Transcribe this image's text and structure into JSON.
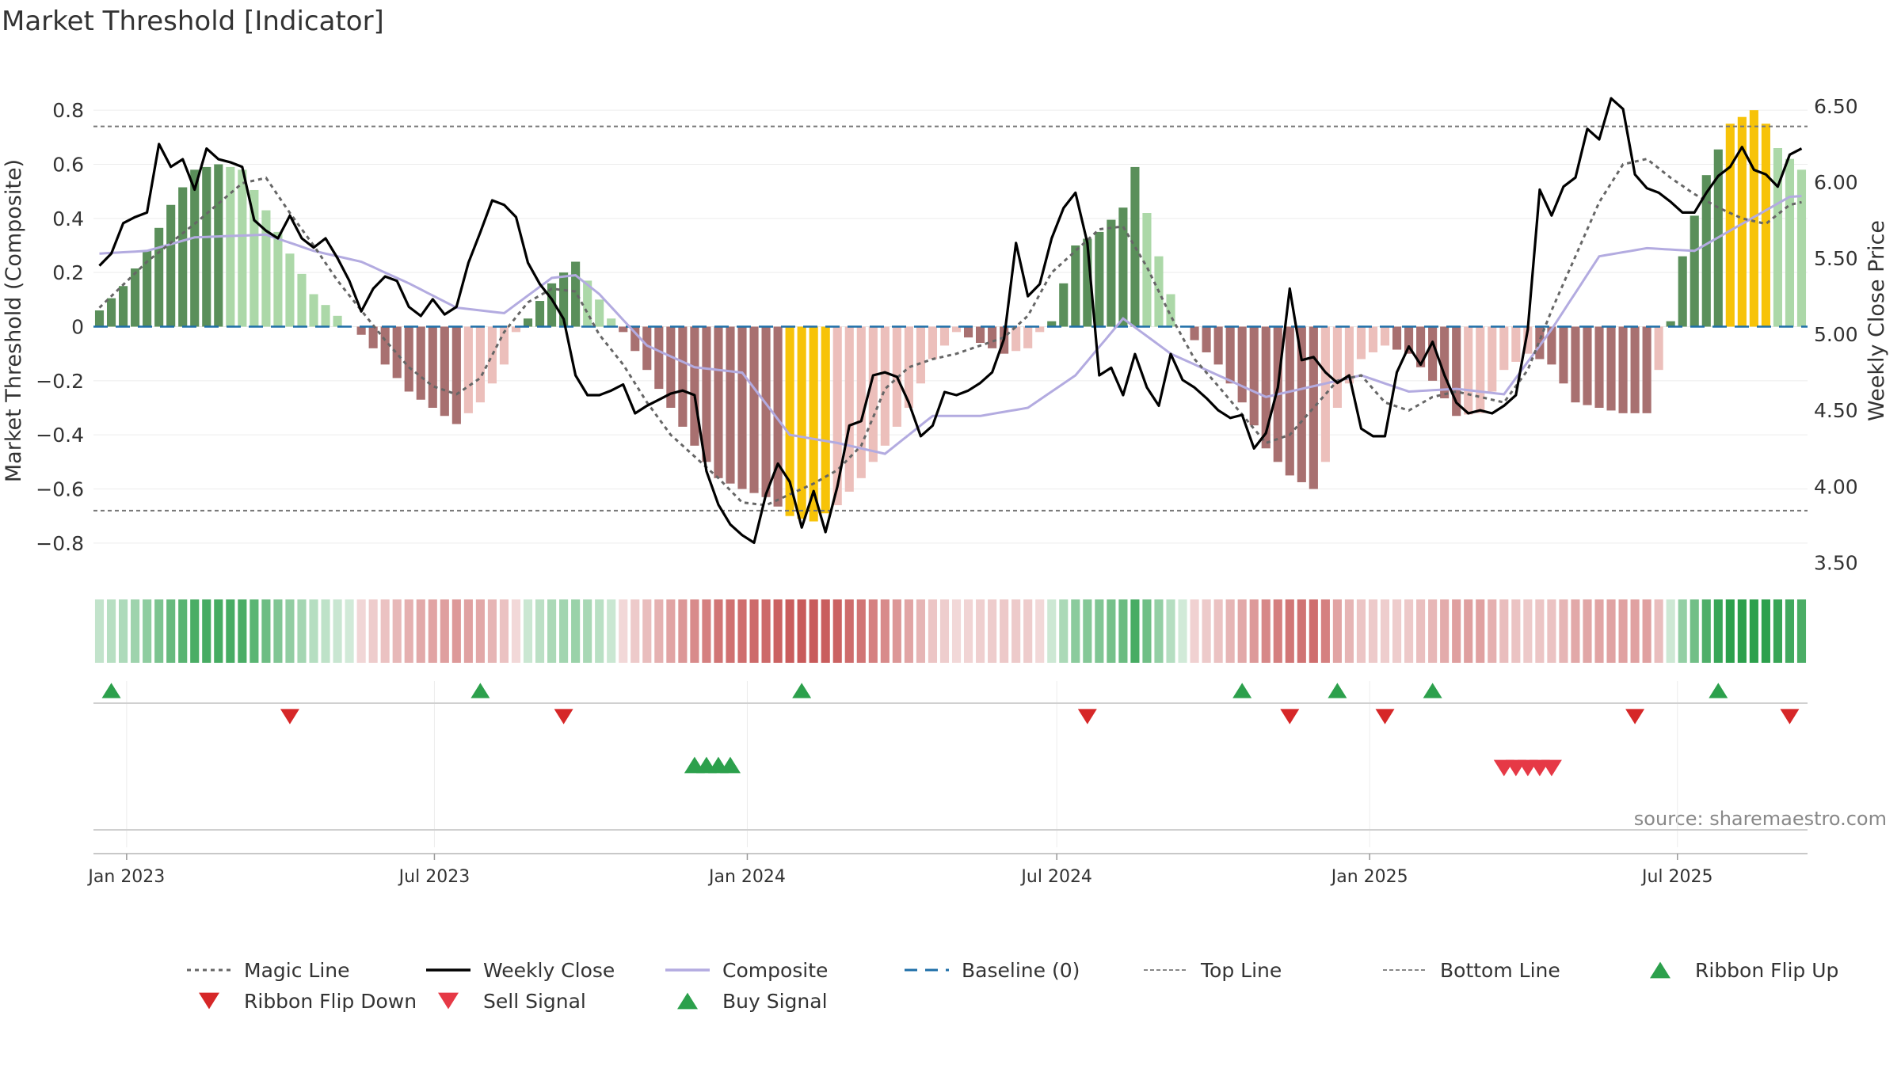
{
  "chart_data": {
    "type": "bar",
    "title": "Market Threshold [Indicator]",
    "ylabel": "Market Threshold (Composite)",
    "y2label": "Weekly Close Price",
    "ylim": [
      -0.9,
      0.9
    ],
    "y2lim": [
      3.45,
      6.65
    ],
    "yticks": [
      0.8,
      0.6,
      0.4,
      0.2,
      0,
      -0.2,
      -0.4,
      -0.6,
      -0.8
    ],
    "ytick_labels": [
      "0.8",
      "0.6",
      "0.4",
      "0.2",
      "0",
      "−0.2",
      "−0.4",
      "−0.6",
      "−0.8"
    ],
    "y2ticks": [
      6.5,
      6.0,
      5.5,
      5.0,
      4.5,
      4.0,
      3.5
    ],
    "y2tick_labels": [
      "6.50",
      "6.00",
      "5.50",
      "5.00",
      "4.50",
      "4.00",
      "3.50"
    ],
    "top_line": 0.74,
    "bottom_line": -0.68,
    "start_date": "2022-12-16",
    "weeks": 144,
    "xticks": [
      "2023-01-01",
      "2023-07-01",
      "2024-01-01",
      "2024-07-01",
      "2025-01-01",
      "2025-07-01"
    ],
    "xtick_labels": [
      "Jan 2023",
      "Jul 2023",
      "Jan 2024",
      "Jul 2024",
      "Jan 2025",
      "Jul 2025"
    ],
    "composite_keypoints": [
      [
        0,
        0.06
      ],
      [
        2,
        0.15
      ],
      [
        4,
        0.28
      ],
      [
        6,
        0.45
      ],
      [
        8,
        0.58
      ],
      [
        10,
        0.6
      ],
      [
        12,
        0.58
      ],
      [
        14,
        0.43
      ],
      [
        16,
        0.27
      ],
      [
        18,
        0.12
      ],
      [
        20,
        0.04
      ],
      [
        21,
        0.0
      ],
      [
        22,
        -0.03
      ],
      [
        23,
        -0.08
      ],
      [
        24,
        -0.14
      ],
      [
        26,
        -0.24
      ],
      [
        28,
        -0.3
      ],
      [
        30,
        -0.36
      ],
      [
        32,
        -0.28
      ],
      [
        34,
        -0.14
      ],
      [
        35,
        -0.02
      ],
      [
        36,
        0.03
      ],
      [
        38,
        0.16
      ],
      [
        40,
        0.24
      ],
      [
        42,
        0.1
      ],
      [
        43,
        0.03
      ],
      [
        44,
        -0.02
      ],
      [
        46,
        -0.16
      ],
      [
        48,
        -0.3
      ],
      [
        50,
        -0.44
      ],
      [
        52,
        -0.56
      ],
      [
        54,
        -0.6
      ],
      [
        56,
        -0.63
      ],
      [
        58,
        -0.7
      ],
      [
        60,
        -0.72
      ],
      [
        62,
        -0.66
      ],
      [
        64,
        -0.56
      ],
      [
        66,
        -0.44
      ],
      [
        68,
        -0.3
      ],
      [
        70,
        -0.12
      ],
      [
        72,
        -0.02
      ],
      [
        74,
        -0.06
      ],
      [
        76,
        -0.1
      ],
      [
        78,
        -0.08
      ],
      [
        79,
        -0.02
      ],
      [
        80,
        0.02
      ],
      [
        82,
        0.3
      ],
      [
        84,
        0.35
      ],
      [
        86,
        0.44
      ],
      [
        87,
        0.59
      ],
      [
        88,
        0.42
      ],
      [
        89,
        0.26
      ],
      [
        90,
        0.12
      ],
      [
        91,
        0.0
      ],
      [
        92,
        -0.05
      ],
      [
        94,
        -0.14
      ],
      [
        96,
        -0.28
      ],
      [
        98,
        -0.45
      ],
      [
        100,
        -0.55
      ],
      [
        102,
        -0.6
      ],
      [
        103,
        -0.5
      ],
      [
        104,
        -0.3
      ],
      [
        106,
        -0.12
      ],
      [
        108,
        -0.07
      ],
      [
        110,
        -0.1
      ],
      [
        112,
        -0.2
      ],
      [
        114,
        -0.33
      ],
      [
        116,
        -0.32
      ],
      [
        118,
        -0.16
      ],
      [
        120,
        -0.1
      ],
      [
        122,
        -0.14
      ],
      [
        124,
        -0.28
      ],
      [
        126,
        -0.3
      ],
      [
        128,
        -0.32
      ],
      [
        130,
        -0.32
      ],
      [
        131,
        -0.16
      ],
      [
        132,
        0.02
      ],
      [
        133,
        0.26
      ],
      [
        135,
        0.56
      ],
      [
        137,
        0.75
      ],
      [
        139,
        0.8
      ],
      [
        140,
        0.75
      ],
      [
        141,
        0.66
      ],
      [
        143,
        0.58
      ]
    ],
    "close_keypoints": [
      [
        0,
        5.45
      ],
      [
        1,
        5.53
      ],
      [
        2,
        5.73
      ],
      [
        3,
        5.77
      ],
      [
        4,
        5.8
      ],
      [
        5,
        6.25
      ],
      [
        6,
        6.1
      ],
      [
        7,
        6.15
      ],
      [
        8,
        5.95
      ],
      [
        9,
        6.22
      ],
      [
        10,
        6.15
      ],
      [
        11,
        6.13
      ],
      [
        12,
        6.1
      ],
      [
        13,
        5.75
      ],
      [
        14,
        5.68
      ],
      [
        15,
        5.63
      ],
      [
        16,
        5.78
      ],
      [
        17,
        5.63
      ],
      [
        18,
        5.57
      ],
      [
        19,
        5.63
      ],
      [
        20,
        5.5
      ],
      [
        21,
        5.35
      ],
      [
        22,
        5.15
      ],
      [
        23,
        5.3
      ],
      [
        24,
        5.38
      ],
      [
        25,
        5.35
      ],
      [
        26,
        5.18
      ],
      [
        27,
        5.12
      ],
      [
        28,
        5.23
      ],
      [
        29,
        5.13
      ],
      [
        30,
        5.18
      ],
      [
        31,
        5.47
      ],
      [
        32,
        5.67
      ],
      [
        33,
        5.88
      ],
      [
        34,
        5.85
      ],
      [
        35,
        5.77
      ],
      [
        36,
        5.47
      ],
      [
        37,
        5.33
      ],
      [
        38,
        5.23
      ],
      [
        39,
        5.1
      ],
      [
        40,
        4.73
      ],
      [
        41,
        4.6
      ],
      [
        42,
        4.6
      ],
      [
        43,
        4.63
      ],
      [
        44,
        4.67
      ],
      [
        45,
        4.48
      ],
      [
        46,
        4.53
      ],
      [
        47,
        4.57
      ],
      [
        48,
        4.61
      ],
      [
        49,
        4.63
      ],
      [
        50,
        4.6
      ],
      [
        51,
        4.1
      ],
      [
        52,
        3.88
      ],
      [
        53,
        3.75
      ],
      [
        54,
        3.68
      ],
      [
        55,
        3.63
      ],
      [
        56,
        3.95
      ],
      [
        57,
        4.15
      ],
      [
        58,
        4.03
      ],
      [
        59,
        3.73
      ],
      [
        60,
        3.97
      ],
      [
        61,
        3.7
      ],
      [
        62,
        4.0
      ],
      [
        63,
        4.4
      ],
      [
        64,
        4.43
      ],
      [
        65,
        4.73
      ],
      [
        66,
        4.75
      ],
      [
        67,
        4.72
      ],
      [
        68,
        4.55
      ],
      [
        69,
        4.33
      ],
      [
        70,
        4.4
      ],
      [
        71,
        4.62
      ],
      [
        72,
        4.6
      ],
      [
        73,
        4.63
      ],
      [
        74,
        4.68
      ],
      [
        75,
        4.75
      ],
      [
        76,
        4.97
      ],
      [
        77,
        5.6
      ],
      [
        78,
        5.25
      ],
      [
        79,
        5.33
      ],
      [
        80,
        5.63
      ],
      [
        81,
        5.83
      ],
      [
        82,
        5.93
      ],
      [
        83,
        5.6
      ],
      [
        84,
        4.73
      ],
      [
        85,
        4.78
      ],
      [
        86,
        4.6
      ],
      [
        87,
        4.87
      ],
      [
        88,
        4.65
      ],
      [
        89,
        4.53
      ],
      [
        90,
        4.87
      ],
      [
        91,
        4.7
      ],
      [
        92,
        4.65
      ],
      [
        93,
        4.58
      ],
      [
        94,
        4.5
      ],
      [
        95,
        4.45
      ],
      [
        96,
        4.47
      ],
      [
        97,
        4.25
      ],
      [
        98,
        4.35
      ],
      [
        99,
        4.65
      ],
      [
        100,
        5.3
      ],
      [
        101,
        4.83
      ],
      [
        102,
        4.85
      ],
      [
        103,
        4.75
      ],
      [
        104,
        4.68
      ],
      [
        105,
        4.73
      ],
      [
        106,
        4.38
      ],
      [
        107,
        4.33
      ],
      [
        108,
        4.33
      ],
      [
        109,
        4.75
      ],
      [
        110,
        4.92
      ],
      [
        111,
        4.8
      ],
      [
        112,
        4.95
      ],
      [
        113,
        4.73
      ],
      [
        114,
        4.55
      ],
      [
        115,
        4.48
      ],
      [
        116,
        4.5
      ],
      [
        117,
        4.48
      ],
      [
        118,
        4.53
      ],
      [
        119,
        4.6
      ],
      [
        120,
        5.03
      ],
      [
        121,
        5.95
      ],
      [
        122,
        5.78
      ],
      [
        123,
        5.97
      ],
      [
        124,
        6.03
      ],
      [
        125,
        6.35
      ],
      [
        126,
        6.28
      ],
      [
        127,
        6.55
      ],
      [
        128,
        6.48
      ],
      [
        129,
        6.05
      ],
      [
        130,
        5.96
      ],
      [
        131,
        5.93
      ],
      [
        132,
        5.87
      ],
      [
        133,
        5.8
      ],
      [
        134,
        5.8
      ],
      [
        135,
        5.93
      ],
      [
        136,
        6.04
      ],
      [
        137,
        6.1
      ],
      [
        138,
        6.23
      ],
      [
        139,
        6.08
      ],
      [
        140,
        6.05
      ],
      [
        141,
        5.97
      ],
      [
        142,
        6.18
      ],
      [
        143,
        6.22
      ]
    ],
    "composite_line_keypoints": [
      [
        0,
        0.27
      ],
      [
        4,
        0.28
      ],
      [
        8,
        0.33
      ],
      [
        14,
        0.34
      ],
      [
        18,
        0.28
      ],
      [
        22,
        0.24
      ],
      [
        26,
        0.16
      ],
      [
        30,
        0.07
      ],
      [
        34,
        0.05
      ],
      [
        38,
        0.18
      ],
      [
        40,
        0.19
      ],
      [
        42,
        0.12
      ],
      [
        46,
        -0.07
      ],
      [
        50,
        -0.15
      ],
      [
        54,
        -0.17
      ],
      [
        58,
        -0.4
      ],
      [
        62,
        -0.43
      ],
      [
        66,
        -0.47
      ],
      [
        70,
        -0.33
      ],
      [
        74,
        -0.33
      ],
      [
        78,
        -0.3
      ],
      [
        82,
        -0.18
      ],
      [
        86,
        0.03
      ],
      [
        90,
        -0.1
      ],
      [
        94,
        -0.18
      ],
      [
        98,
        -0.26
      ],
      [
        102,
        -0.22
      ],
      [
        106,
        -0.18
      ],
      [
        110,
        -0.24
      ],
      [
        114,
        -0.23
      ],
      [
        118,
        -0.25
      ],
      [
        122,
        -0.01
      ],
      [
        126,
        0.26
      ],
      [
        130,
        0.29
      ],
      [
        134,
        0.28
      ],
      [
        138,
        0.38
      ],
      [
        142,
        0.48
      ],
      [
        146,
        0.49
      ]
    ],
    "magic_line_keypoints": [
      [
        0,
        0.07
      ],
      [
        4,
        0.24
      ],
      [
        8,
        0.38
      ],
      [
        12,
        0.53
      ],
      [
        14,
        0.55
      ],
      [
        16,
        0.42
      ],
      [
        18,
        0.3
      ],
      [
        20,
        0.17
      ],
      [
        24,
        -0.05
      ],
      [
        26,
        -0.15
      ],
      [
        28,
        -0.22
      ],
      [
        30,
        -0.25
      ],
      [
        32,
        -0.19
      ],
      [
        34,
        -0.02
      ],
      [
        36,
        0.09
      ],
      [
        38,
        0.14
      ],
      [
        40,
        0.13
      ],
      [
        42,
        -0.03
      ],
      [
        44,
        -0.14
      ],
      [
        46,
        -0.28
      ],
      [
        48,
        -0.4
      ],
      [
        50,
        -0.48
      ],
      [
        52,
        -0.56
      ],
      [
        54,
        -0.65
      ],
      [
        56,
        -0.66
      ],
      [
        58,
        -0.62
      ],
      [
        60,
        -0.58
      ],
      [
        62,
        -0.53
      ],
      [
        64,
        -0.44
      ],
      [
        66,
        -0.23
      ],
      [
        68,
        -0.15
      ],
      [
        70,
        -0.12
      ],
      [
        72,
        -0.1
      ],
      [
        76,
        -0.04
      ],
      [
        78,
        0.04
      ],
      [
        80,
        0.2
      ],
      [
        84,
        0.36
      ],
      [
        86,
        0.37
      ],
      [
        88,
        0.22
      ],
      [
        90,
        0.04
      ],
      [
        92,
        -0.12
      ],
      [
        94,
        -0.22
      ],
      [
        98,
        -0.43
      ],
      [
        100,
        -0.4
      ],
      [
        102,
        -0.3
      ],
      [
        104,
        -0.2
      ],
      [
        106,
        -0.18
      ],
      [
        108,
        -0.28
      ],
      [
        110,
        -0.31
      ],
      [
        112,
        -0.26
      ],
      [
        114,
        -0.24
      ],
      [
        116,
        -0.26
      ],
      [
        118,
        -0.28
      ],
      [
        120,
        -0.16
      ],
      [
        122,
        0.06
      ],
      [
        126,
        0.46
      ],
      [
        128,
        0.6
      ],
      [
        130,
        0.62
      ],
      [
        132,
        0.55
      ],
      [
        134,
        0.49
      ],
      [
        136,
        0.44
      ],
      [
        138,
        0.4
      ],
      [
        140,
        0.38
      ],
      [
        142,
        0.45
      ],
      [
        144,
        0.47
      ],
      [
        146,
        0.38
      ]
    ],
    "ribbon_flip_up_weeks": [
      1,
      32,
      59,
      96,
      104,
      112,
      136
    ],
    "ribbon_flip_down_weeks": [
      16,
      39,
      83,
      100,
      108,
      129,
      142
    ],
    "buy_signal_weeks": [
      50,
      51,
      52,
      53
    ],
    "sell_signal_weeks": [
      118,
      119,
      120,
      121,
      122
    ],
    "source": "source: sharemaestro.com",
    "legend_placement": "bottom",
    "grid": true,
    "legend": [
      {
        "label": "Magic Line",
        "kind": "dotted",
        "color": "#666666"
      },
      {
        "label": "Weekly Close",
        "kind": "solid",
        "color": "#000000"
      },
      {
        "label": "Composite",
        "kind": "solid",
        "color": "#b3abe0"
      },
      {
        "label": "Baseline (0)",
        "kind": "dashed",
        "color": "#1f6fa8"
      },
      {
        "label": "Top Line",
        "kind": "finedash",
        "color": "#888888"
      },
      {
        "label": "Bottom Line",
        "kind": "finedash",
        "color": "#888888"
      },
      {
        "label": "Ribbon Flip Up",
        "kind": "triup",
        "color": "#2ca04c"
      },
      {
        "label": "Ribbon Flip Down",
        "kind": "tridown",
        "color": "#d62728"
      },
      {
        "label": "Sell Signal",
        "kind": "tridown",
        "color": "#e63946"
      },
      {
        "label": "Buy Signal",
        "kind": "triup",
        "color": "#2ca04c"
      }
    ],
    "colors": {
      "pos_dark": "#5a8f5a",
      "pos_light": "#acd8a8",
      "neg_dark": "#a87070",
      "neg_light": "#ecbfbb",
      "extreme": "#f7c308",
      "baseline": "#1f6fa8",
      "magic": "#666666",
      "close": "#000000",
      "composite": "#b3abe0",
      "up": "#2ca04c",
      "down": "#d62728",
      "sell": "#e63946"
    }
  }
}
